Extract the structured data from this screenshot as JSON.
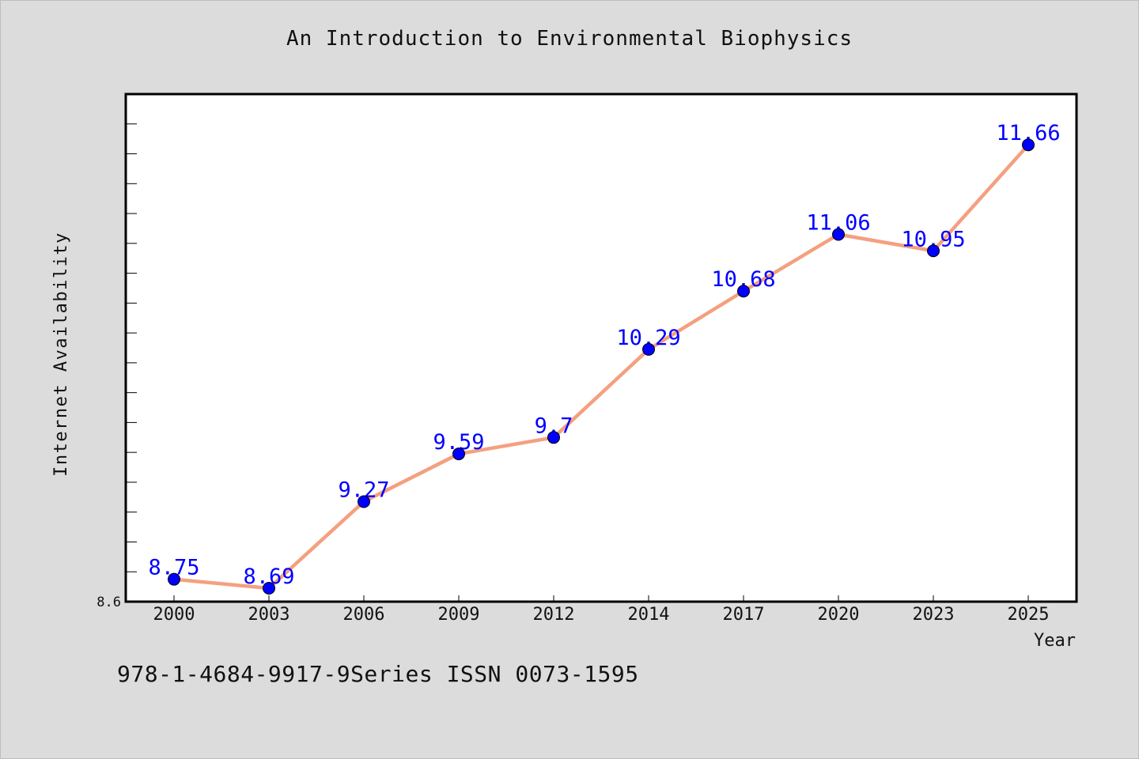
{
  "header": {
    "title": "An Introduction to Environmental Biophysics"
  },
  "footer": {
    "text": "978-1-4684-9917-9Series ISSN 0073-1595"
  },
  "colors": {
    "line": "#f4a07f",
    "marker": "#0000ff",
    "label": "#0000ff",
    "background": "#dcdcdc",
    "plot_bg": "#ffffff"
  },
  "chart_data": {
    "type": "line",
    "title": "An Introduction to Environmental Biophysics",
    "xlabel": "Year",
    "ylabel": "Internet Availability",
    "x": [
      "2000",
      "2003",
      "2006",
      "2009",
      "2012",
      "2014",
      "2017",
      "2020",
      "2023",
      "2025"
    ],
    "series": [
      {
        "values": [
          8.75,
          8.69,
          9.27,
          9.59,
          9.7,
          10.29,
          10.68,
          11.06,
          10.95,
          11.66
        ]
      }
    ],
    "data_labels": [
      "8.75",
      "8.69",
      "9.27",
      "9.59",
      "9.7",
      "10.29",
      "10.68",
      "11.06",
      "10.95",
      "11.66"
    ],
    "ylim": [
      8.6,
      12.0
    ],
    "y_tick_labels": [
      "8.6"
    ],
    "grid": false,
    "legend": "none"
  }
}
